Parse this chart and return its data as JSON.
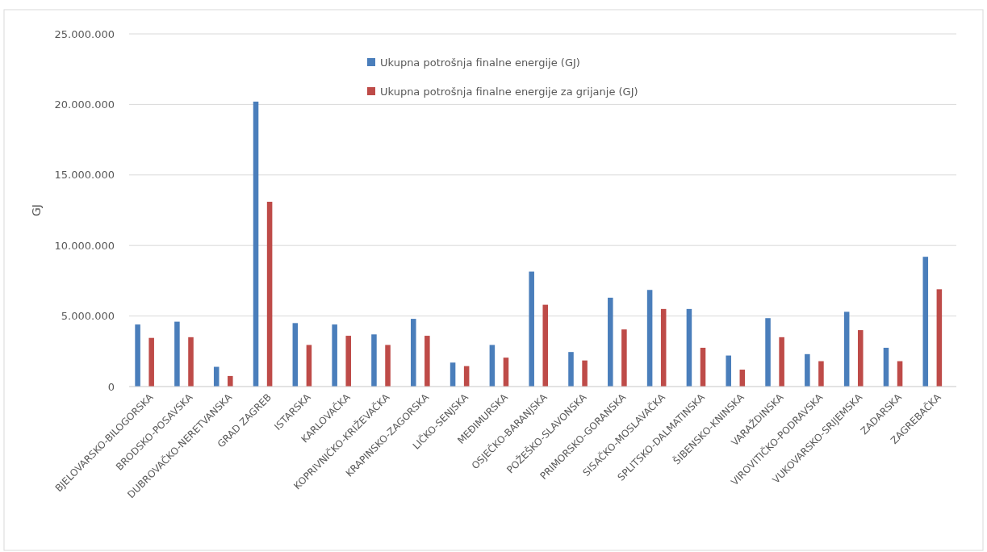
{
  "chart_data": {
    "type": "bar",
    "ylabel": "GJ",
    "categories": [
      "BJELOVARSKO-BILOGORSKA",
      "BRODSKO-POSAVSKA",
      "DUBROVAČKO-NERETVANSKA",
      "GRAD ZAGREB",
      "ISTARSKA",
      "KARLOVAČKA",
      "KOPRIVNIČKO-KRIŽEVAČKA",
      "KRAPINSKO-ZAGORSKA",
      "LIČKO-SENJSKA",
      "MEĐIMURSKA",
      "OSJEČKO-BARANJSKA",
      "POŽEŠKO-SLAVONSKA",
      "PRIMORSKO-GORANSKA",
      "SISAČKO-MOSLAVAČKA",
      "SPLITSKO-DALMATINSKA",
      "ŠIBENSKO-KNINSKA",
      "VARAŽDINSKA",
      "VIROVITIČKO-PODRAVSKA",
      "VUKOVARSKO-SRIJEMSKA",
      "ZADARSKA",
      "ZAGREBAČKA"
    ],
    "series": [
      {
        "name": "Ukupna potrošnja finalne energije (GJ)",
        "color": "#4a7ebb",
        "values": [
          4400000,
          4600000,
          1400000,
          20200000,
          4500000,
          4400000,
          3700000,
          4800000,
          1700000,
          2950000,
          8150000,
          2450000,
          6300000,
          6850000,
          5500000,
          2200000,
          4850000,
          2300000,
          5300000,
          2750000,
          9200000
        ]
      },
      {
        "name": "Ukupna potrošnja finalne energije za grijanje (GJ)",
        "color": "#be4b48",
        "values": [
          3450000,
          3500000,
          750000,
          13100000,
          2950000,
          3600000,
          2950000,
          3600000,
          1450000,
          2050000,
          5800000,
          1850000,
          4050000,
          5500000,
          2750000,
          1200000,
          3500000,
          1800000,
          4000000,
          1800000,
          6900000
        ]
      }
    ],
    "ylim": [
      0,
      25000000
    ],
    "yticks": [
      0,
      {
        "value": 5000000,
        "label": "5.000.000"
      },
      {
        "value": 10000000,
        "label": "10.000.000"
      },
      {
        "value": 15000000,
        "label": "15.000.000"
      },
      {
        "value": 20000000,
        "label": "20.000.000"
      },
      {
        "value": 25000000,
        "label": "25.000.000"
      }
    ],
    "grid": "y",
    "legend": "top"
  }
}
